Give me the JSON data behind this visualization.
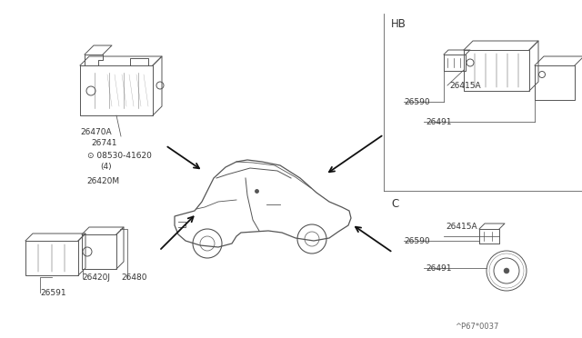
{
  "bg_color": "#ffffff",
  "fig_width": 6.4,
  "fig_height": 3.72,
  "ec": "#555555",
  "lw": 0.7,
  "fs": 6.5,
  "watermark": "^P67*0037",
  "hb_label": "HB",
  "c_label": "C"
}
